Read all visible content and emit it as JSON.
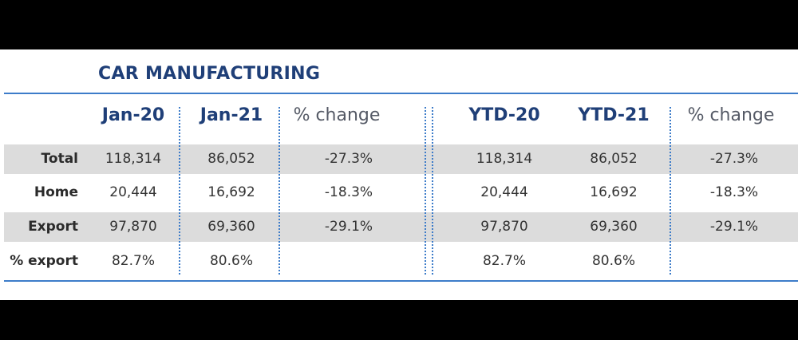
{
  "title": "CAR MANUFACTURING",
  "columns": [
    "Jan-20",
    "Jan-21",
    "% change",
    "YTD-20",
    "YTD-21",
    "% change"
  ],
  "rows": [
    {
      "label": "Total",
      "values": [
        "118,314",
        "86,052",
        "-27.3%",
        "118,314",
        "86,052",
        "-27.3%"
      ]
    },
    {
      "label": "Home",
      "values": [
        "20,444",
        "16,692",
        "-18.3%",
        "20,444",
        "16,692",
        "-18.3%"
      ]
    },
    {
      "label": "Export",
      "values": [
        "97,870",
        "69,360",
        "-29.1%",
        "97,870",
        "69,360",
        "-29.1%"
      ]
    },
    {
      "label": "% export",
      "values": [
        "82.7%",
        "80.6%",
        "",
        "82.7%",
        "80.6%",
        ""
      ]
    }
  ],
  "colors": {
    "title": "#1f3f78",
    "rule": "#3d7cc9",
    "band": "#dcdcdc"
  }
}
